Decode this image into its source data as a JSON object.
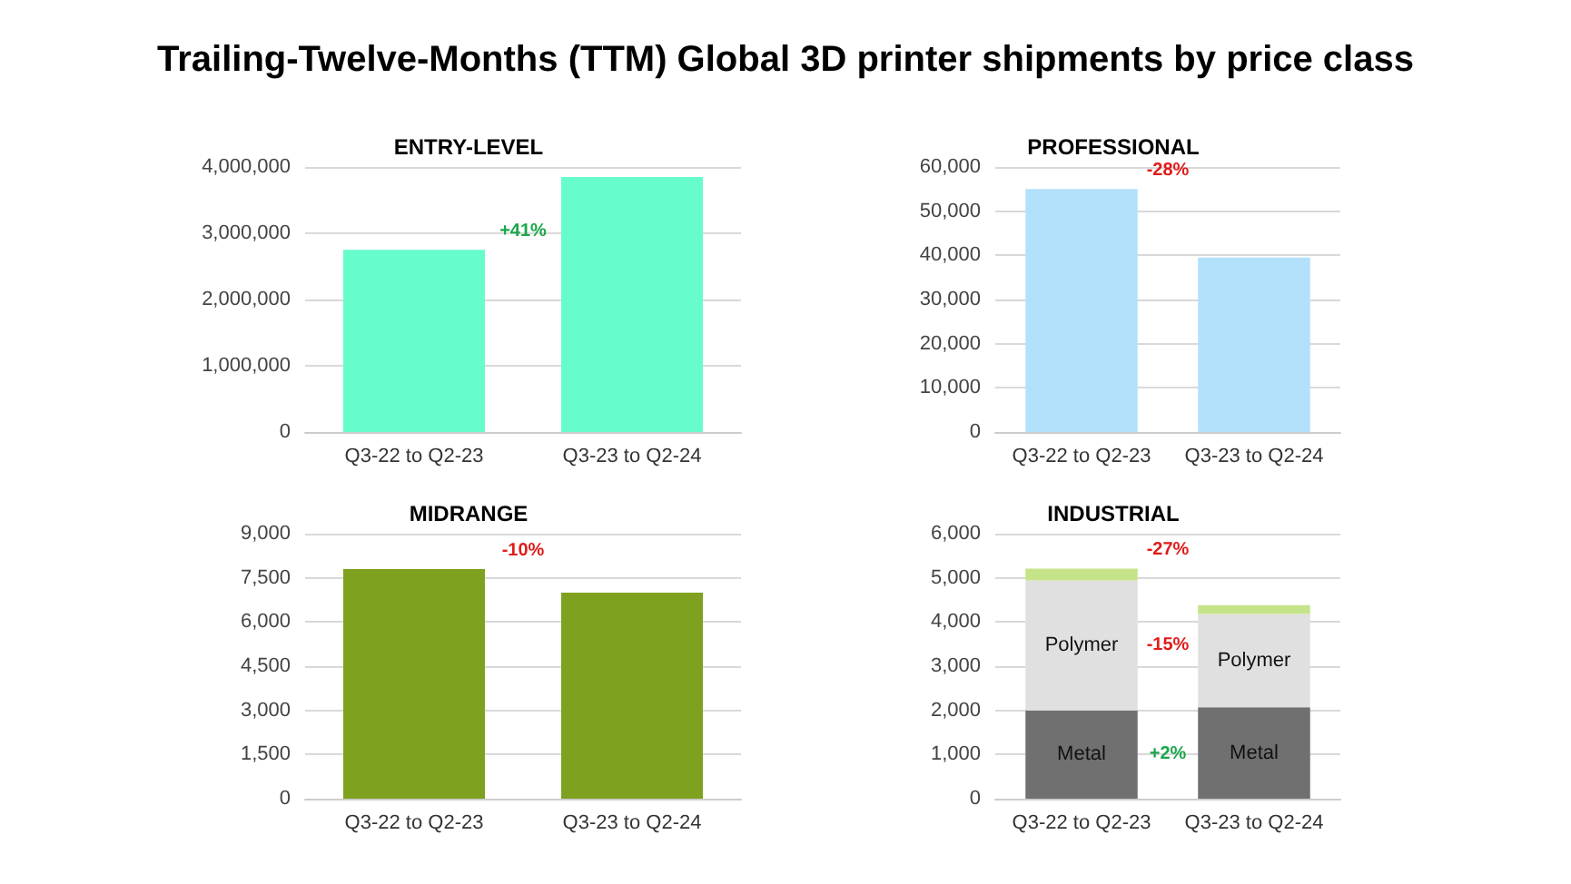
{
  "chart_data": [
    {
      "type": "bar",
      "title": "Trailing-Twelve-Months (TTM) Global 3D printer shipments by price class",
      "subtitle": "ENTRY-LEVEL",
      "categories": [
        "Q3-22 to Q2-23",
        "Q3-23 to Q2-24"
      ],
      "values": [
        2750000,
        3850000
      ],
      "color": "#66fccb",
      "ylim": [
        0,
        4000000
      ],
      "yticks": [
        {
          "value": 0,
          "label": "0"
        },
        {
          "value": 1000000,
          "label": "1,000,000"
        },
        {
          "value": 2000000,
          "label": "2,000,000"
        },
        {
          "value": 3000000,
          "label": "3,000,000"
        },
        {
          "value": 4000000,
          "label": "4,000,000"
        }
      ],
      "grid": "y",
      "legend": false,
      "annotations": [
        "+41%"
      ]
    },
    {
      "type": "bar",
      "subtitle": "PROFESSIONAL",
      "categories": [
        "Q3-22 to Q2-23",
        "Q3-23 to Q2-24"
      ],
      "values": [
        55000,
        39500
      ],
      "color": "#b3e0fb",
      "ylim": [
        0,
        60000
      ],
      "yticks": [
        {
          "value": 0,
          "label": "0"
        },
        {
          "value": 10000,
          "label": "10,000"
        },
        {
          "value": 20000,
          "label": "20,000"
        },
        {
          "value": 30000,
          "label": "30,000"
        },
        {
          "value": 40000,
          "label": "40,000"
        },
        {
          "value": 50000,
          "label": "50,000"
        },
        {
          "value": 60000,
          "label": "60,000"
        }
      ],
      "grid": "y",
      "legend": false,
      "annotations": [
        "-28%"
      ]
    },
    {
      "type": "bar",
      "subtitle": "MIDRANGE",
      "categories": [
        "Q3-22 to Q2-23",
        "Q3-23 to Q2-24"
      ],
      "values": [
        7800,
        7000
      ],
      "color": "#7ea21f",
      "ylim": [
        0,
        9000
      ],
      "yticks": [
        {
          "value": 0,
          "label": "0"
        },
        {
          "value": 1500,
          "label": "1,500"
        },
        {
          "value": 3000,
          "label": "3,000"
        },
        {
          "value": 4500,
          "label": "4,500"
        },
        {
          "value": 6000,
          "label": "6,000"
        },
        {
          "value": 7500,
          "label": "7,500"
        },
        {
          "value": 9000,
          "label": "9,000"
        }
      ],
      "grid": "y",
      "legend": false,
      "annotations": [
        "-10%"
      ]
    },
    {
      "type": "bar",
      "subtitle": "INDUSTRIAL",
      "categories": [
        "Q3-22 to Q2-23",
        "Q3-23 to Q2-24"
      ],
      "stacked": true,
      "ylim": [
        0,
        6000
      ],
      "yticks": [
        {
          "value": 0,
          "label": "0"
        },
        {
          "value": 1000,
          "label": "1,000"
        },
        {
          "value": 2000,
          "label": "2,000"
        },
        {
          "value": 3000,
          "label": "3,000"
        },
        {
          "value": 4000,
          "label": "4,000"
        },
        {
          "value": 5000,
          "label": "5,000"
        },
        {
          "value": 6000,
          "label": "6,000"
        }
      ],
      "grid": "y",
      "legend": false,
      "series": [
        {
          "name": "Metal",
          "color": "#707070",
          "values": [
            2000,
            2070
          ]
        },
        {
          "name": "Polymer",
          "color": "#e0e0e0",
          "values": [
            2940,
            2110
          ]
        },
        {
          "color": "#c5e48a",
          "values": [
            270,
            200
          ]
        }
      ],
      "annotations": [
        "-27%",
        "-15%",
        "+2%"
      ]
    }
  ]
}
